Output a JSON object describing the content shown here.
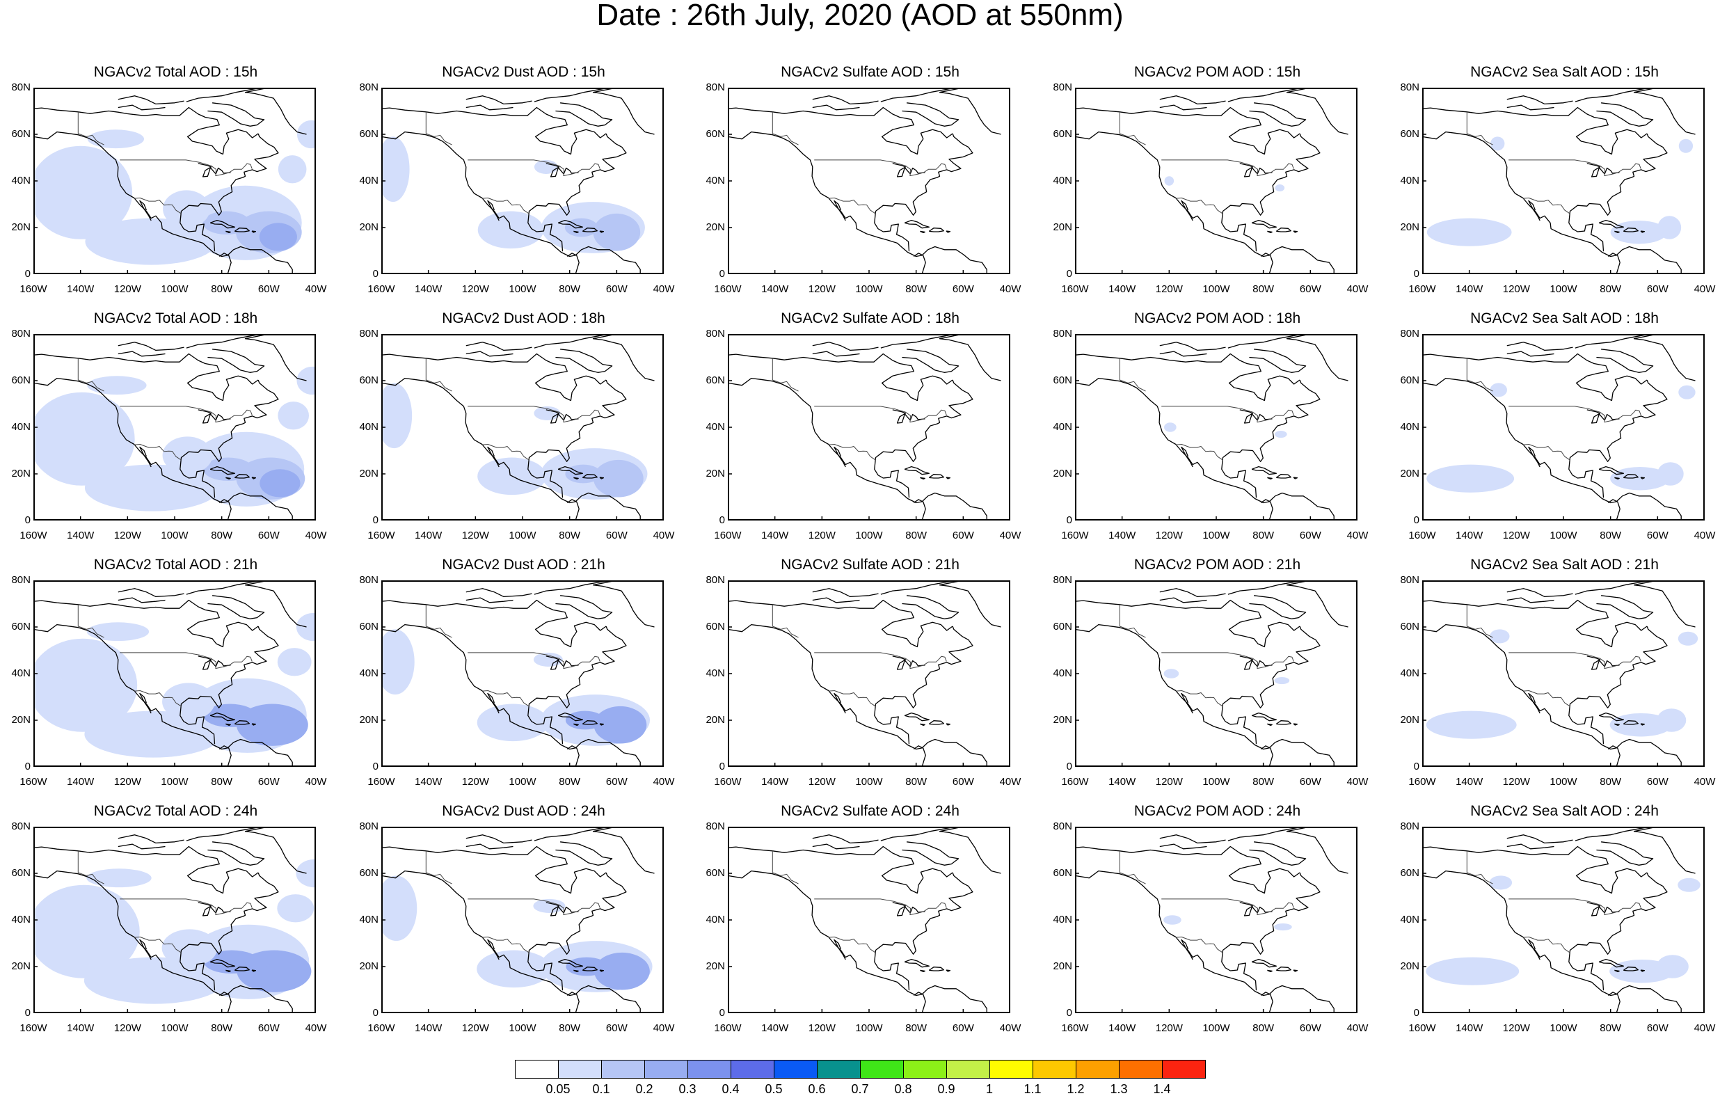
{
  "title": "Date : 26th July, 2020 (AOD at 550nm)",
  "lat_ticks": [
    "80N",
    "60N",
    "40N",
    "20N",
    "0"
  ],
  "lon_ticks": [
    "160W",
    "140W",
    "120W",
    "100W",
    "80W",
    "60W",
    "40W"
  ],
  "fields": [
    {
      "key": "total",
      "label": "Total AOD",
      "intensity": 1.0
    },
    {
      "key": "dust",
      "label": "Dust AOD",
      "intensity": 0.75
    },
    {
      "key": "sulfate",
      "label": "Sulfate AOD",
      "intensity": 0.0
    },
    {
      "key": "pom",
      "label": "POM AOD",
      "intensity": 0.05
    },
    {
      "key": "seasalt",
      "label": "Sea Salt AOD",
      "intensity": 0.35
    }
  ],
  "hours": [
    "15h",
    "18h",
    "21h",
    "24h"
  ],
  "panels": [
    [
      "NGACv2 Total AOD : 15h",
      "NGACv2 Dust AOD : 15h",
      "NGACv2 Sulfate AOD : 15h",
      "NGACv2 POM AOD : 15h",
      "NGACv2 Sea Salt AOD : 15h"
    ],
    [
      "NGACv2 Total AOD : 18h",
      "NGACv2 Dust AOD : 18h",
      "NGACv2 Sulfate AOD : 18h",
      "NGACv2 POM AOD : 18h",
      "NGACv2 Sea Salt AOD : 18h"
    ],
    [
      "NGACv2 Total AOD : 21h",
      "NGACv2 Dust AOD : 21h",
      "NGACv2 Sulfate AOD : 21h",
      "NGACv2 POM AOD : 21h",
      "NGACv2 Sea Salt AOD : 21h"
    ],
    [
      "NGACv2 Total AOD : 24h",
      "NGACv2 Dust AOD : 24h",
      "NGACv2 Sulfate AOD : 24h",
      "NGACv2 POM AOD : 24h",
      "NGACv2 Sea Salt  AOD : 24h"
    ]
  ],
  "colorbar": {
    "labels": [
      "0.05",
      "0.1",
      "0.2",
      "0.3",
      "0.4",
      "0.5",
      "0.6",
      "0.7",
      "0.8",
      "0.9",
      "1",
      "1.1",
      "1.2",
      "1.3",
      "1.4"
    ],
    "colors": [
      "#ffffff",
      "#d3defb",
      "#b6c6f5",
      "#98adf1",
      "#7c92ee",
      "#5d6ce9",
      "#0a5af5",
      "#08928e",
      "#3fe618",
      "#8cf018",
      "#c3f048",
      "#fffc00",
      "#fdc800",
      "#fda000",
      "#fd7000",
      "#fb2410"
    ]
  }
}
